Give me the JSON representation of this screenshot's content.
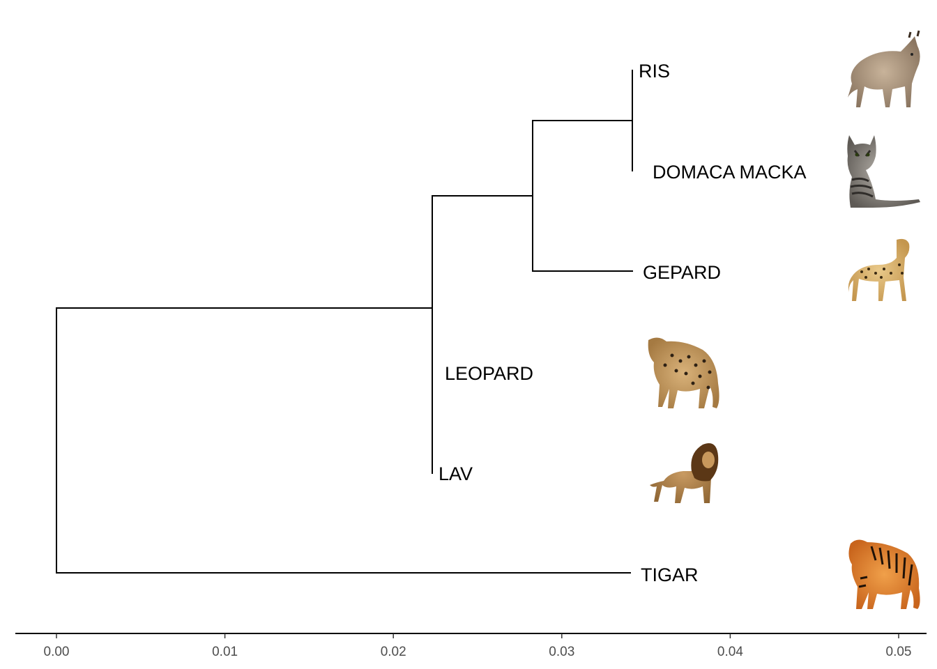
{
  "chart_data": {
    "type": "dendrogram",
    "orientation": "left-to-right",
    "x_axis": {
      "ticks": [
        0.0,
        0.01,
        0.02,
        0.03,
        0.04,
        0.05
      ],
      "tick_labels": [
        "0.00",
        "0.01",
        "0.02",
        "0.03",
        "0.04",
        "0.05"
      ],
      "range": [
        -0.0024,
        0.0517
      ]
    },
    "tips": [
      {
        "label": "RIS",
        "branch_end": 0.0343,
        "image": "lynx-illustration"
      },
      {
        "label": "DOMACA MACKA",
        "branch_end": 0.0343,
        "image": "tabby-cat-illustration"
      },
      {
        "label": "GEPARD",
        "branch_end": 0.0343,
        "image": "cheetah-illustration"
      },
      {
        "label": "LEOPARD",
        "branch_end": 0.0223,
        "image": "leopard-illustration"
      },
      {
        "label": "LAV",
        "branch_end": 0.0223,
        "image": "lion-illustration"
      },
      {
        "label": "TIGAR",
        "branch_end": 0.0341,
        "image": "tiger-illustration"
      }
    ],
    "nodes": [
      {
        "id": "root",
        "x": 0.0,
        "children": [
          "tigar",
          "big-clade"
        ]
      },
      {
        "id": "big-clade",
        "x": 0.0223,
        "children": [
          "lav",
          "leopard",
          "small-clade"
        ]
      },
      {
        "id": "small-clade",
        "x": 0.0283,
        "children": [
          "gepard",
          "ris-macka"
        ]
      },
      {
        "id": "ris-macka",
        "x": 0.0343,
        "children": [
          "ris",
          "domaca-macka"
        ]
      }
    ]
  },
  "colors": {
    "lines": "#000000",
    "tick_text": "#4d4d4d",
    "background": "#ffffff"
  }
}
